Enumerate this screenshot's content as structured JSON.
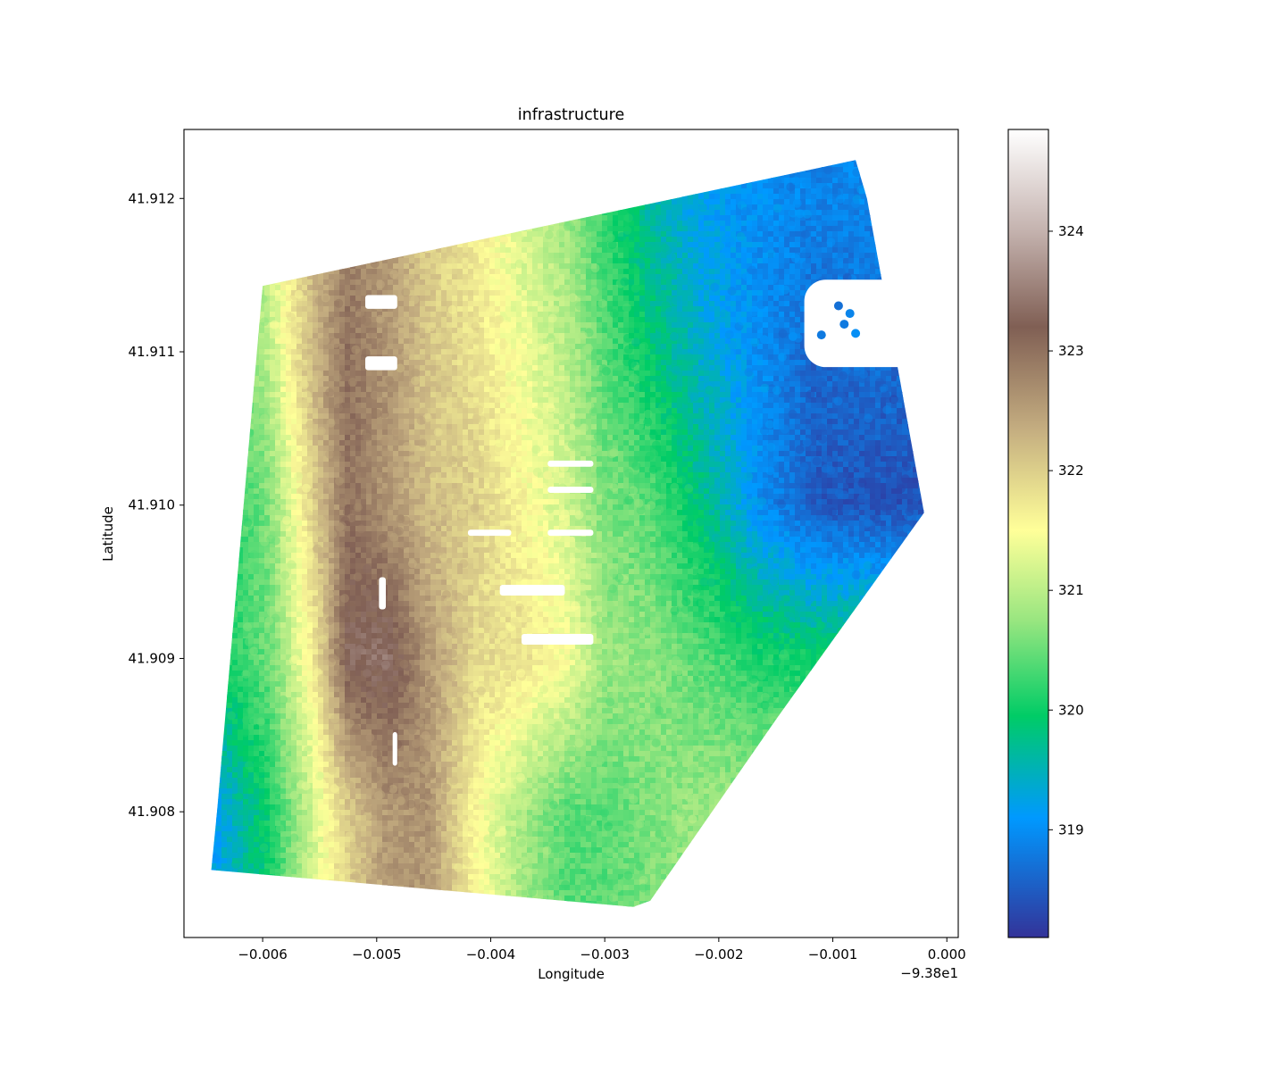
{
  "chart_data": {
    "type": "scatter",
    "title": "infrastructure",
    "xlabel": "Longitude",
    "ylabel": "Latitude",
    "x_offset_label": "−9.38e1",
    "xlim": [
      -0.00669,
      0.0001
    ],
    "ylim": [
      41.90718,
      41.91245
    ],
    "x_ticks": [
      -0.006,
      -0.005,
      -0.004,
      -0.003,
      -0.002,
      -0.001,
      0.0
    ],
    "x_tick_labels": [
      "−0.006",
      "−0.005",
      "−0.004",
      "−0.003",
      "−0.002",
      "−0.001",
      "0.000"
    ],
    "y_ticks": [
      41.908,
      41.909,
      41.91,
      41.911,
      41.912
    ],
    "y_tick_labels": [
      "41.908",
      "41.909",
      "41.910",
      "41.911",
      "41.912"
    ],
    "colorbar": {
      "colormap": "terrain",
      "range": [
        318.1,
        324.85
      ],
      "ticks": [
        319,
        320,
        321,
        322,
        323,
        324
      ],
      "tick_labels": [
        "319",
        "320",
        "321",
        "322",
        "323",
        "324"
      ],
      "stops": [
        {
          "value": 318.1,
          "color": "#333399"
        },
        {
          "value": 319.1,
          "color": "#0099ff"
        },
        {
          "value": 319.95,
          "color": "#00cc66"
        },
        {
          "value": 320.75,
          "color": "#99e680"
        },
        {
          "value": 321.5,
          "color": "#ffff99"
        },
        {
          "value": 322.35,
          "color": "#c4ad80"
        },
        {
          "value": 323.2,
          "color": "#805f54"
        },
        {
          "value": 324.0,
          "color": "#c4b2ae"
        },
        {
          "value": 324.85,
          "color": "#ffffff"
        }
      ]
    },
    "survey_boundary": [
      [
        -0.006,
        41.91143
      ],
      [
        -0.0008,
        41.91225
      ],
      [
        -0.0007,
        41.912
      ],
      [
        -0.0002,
        41.90995
      ],
      [
        -0.0015,
        41.9086
      ],
      [
        -0.0026,
        41.90742
      ],
      [
        -0.00275,
        41.90738
      ],
      [
        -0.00645,
        41.90762
      ],
      [
        -0.0064,
        41.908
      ]
    ],
    "elevation_profile": {
      "columns": [
        -0.0064,
        -0.00595,
        -0.00555,
        -0.00525,
        -0.0049,
        -0.00455,
        -0.00415,
        -0.00375,
        -0.00335,
        -0.003,
        -0.0026,
        -0.00215,
        -0.00165,
        -0.00115,
        -0.0007,
        -0.0002
      ],
      "rows": [
        41.912,
        41.911,
        41.91,
        41.909,
        41.908
      ],
      "z": [
        [
          320.4,
          321.2,
          322.2,
          322.8,
          322.5,
          322.0,
          321.7,
          321.2,
          320.8,
          320.2,
          319.6,
          319.2,
          319.0,
          318.9,
          318.9,
          318.8
        ],
        [
          320.2,
          321.0,
          322.3,
          323.0,
          322.6,
          322.1,
          321.8,
          321.4,
          321.0,
          320.4,
          319.9,
          319.4,
          319.0,
          318.6,
          318.7,
          318.6
        ],
        [
          320.0,
          320.6,
          322.0,
          323.0,
          322.6,
          322.2,
          322.0,
          321.6,
          321.2,
          320.6,
          320.4,
          319.8,
          319.0,
          318.5,
          318.4,
          318.4
        ],
        [
          320.0,
          320.5,
          321.7,
          323.3,
          323.4,
          322.6,
          321.9,
          321.8,
          321.5,
          320.8,
          320.7,
          320.4,
          320.1,
          320.0,
          320.0,
          320.0
        ],
        [
          319.2,
          320.0,
          321.2,
          322.0,
          322.6,
          322.6,
          321.6,
          320.9,
          320.4,
          320.4,
          320.6,
          320.8,
          320.8,
          320.8,
          320.8,
          320.8
        ]
      ]
    }
  }
}
